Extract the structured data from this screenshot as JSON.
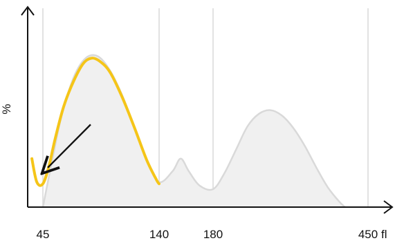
{
  "chart_data": {
    "type": "area",
    "title": "",
    "xlabel": "fl",
    "ylabel": "%",
    "x_ticks": [
      {
        "value": 45,
        "label": "45"
      },
      {
        "value": 140,
        "label": "140"
      },
      {
        "value": 180,
        "label": "180"
      },
      {
        "value": 450,
        "label": "450"
      }
    ],
    "xlim": [
      28,
      470
    ],
    "ylim": [
      0,
      100
    ],
    "grid": "vertical lines at tick positions",
    "series": [
      {
        "name": "",
        "role": "background distribution",
        "color": "#d9d9d9",
        "fill": "#f0f0f0",
        "points": [
          [
            45,
            0
          ],
          [
            52,
            24
          ],
          [
            60,
            50
          ],
          [
            70,
            72
          ],
          [
            80,
            83
          ],
          [
            90,
            84
          ],
          [
            100,
            76
          ],
          [
            110,
            62
          ],
          [
            120,
            44
          ],
          [
            130,
            26
          ],
          [
            140,
            14
          ],
          [
            150,
            20
          ],
          [
            156,
            27
          ],
          [
            162,
            20
          ],
          [
            170,
            12
          ],
          [
            180,
            10
          ],
          [
            200,
            19
          ],
          [
            220,
            32
          ],
          [
            240,
            45
          ],
          [
            260,
            52
          ],
          [
            280,
            54
          ],
          [
            300,
            51
          ],
          [
            320,
            44
          ],
          [
            340,
            34
          ],
          [
            360,
            22
          ],
          [
            380,
            11
          ],
          [
            400,
            3
          ],
          [
            410,
            0
          ]
        ]
      },
      {
        "name": "",
        "role": "highlighted distribution",
        "color": "#f5c518",
        "points": [
          [
            36,
            27
          ],
          [
            40,
            14
          ],
          [
            45,
            13
          ],
          [
            50,
            23
          ],
          [
            55,
            38
          ],
          [
            62,
            56
          ],
          [
            70,
            70
          ],
          [
            78,
            80
          ],
          [
            85,
            83
          ],
          [
            92,
            81
          ],
          [
            100,
            75
          ],
          [
            110,
            61
          ],
          [
            120,
            44
          ],
          [
            130,
            26
          ],
          [
            138,
            15
          ],
          [
            140,
            13
          ]
        ]
      }
    ],
    "annotations": [
      {
        "type": "arrow",
        "from": [
          84,
          46
        ],
        "to": [
          49,
          22
        ],
        "color": "#111111"
      }
    ],
    "colors": {
      "axis": "#111111",
      "grid": "#d9d9d9",
      "highlight": "#f5c518",
      "area_fill": "#f0f0f0"
    }
  }
}
